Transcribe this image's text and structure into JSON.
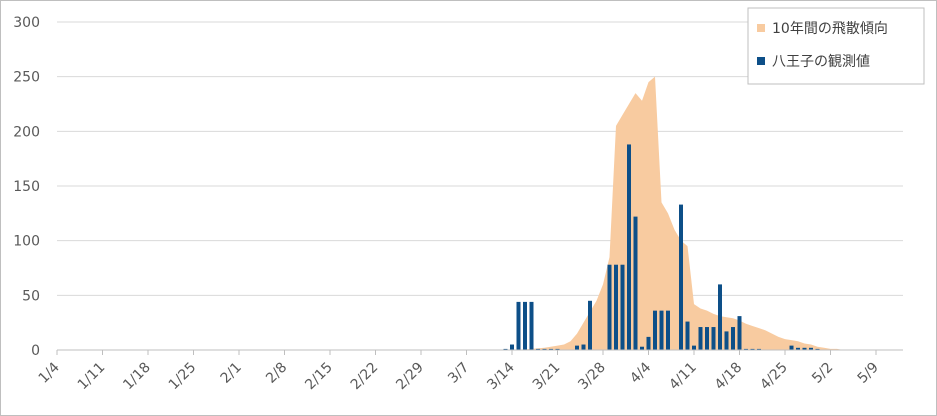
{
  "chart_data": {
    "type": "bar",
    "title": "",
    "xlabel": "",
    "ylabel": "",
    "ylim": [
      0,
      300
    ],
    "yticks": [
      0,
      50,
      100,
      150,
      200,
      250,
      300
    ],
    "grid": true,
    "legend_position": "top-right",
    "start_date": "1/4",
    "x_tick_labels": [
      "1/4",
      "1/11",
      "1/18",
      "1/25",
      "2/1",
      "2/8",
      "2/15",
      "2/22",
      "2/29",
      "3/7",
      "3/14",
      "3/21",
      "3/28",
      "4/4",
      "4/11",
      "4/18",
      "4/25",
      "5/2",
      "5/9"
    ],
    "series": [
      {
        "name": "10年間の飛散傾向",
        "type": "area",
        "color": "#f8cba0",
        "points": [
          [
            "3/14",
            0
          ],
          [
            "3/17",
            1
          ],
          [
            "3/19",
            2
          ],
          [
            "3/21",
            4
          ],
          [
            "3/22",
            5
          ],
          [
            "3/23",
            8
          ],
          [
            "3/24",
            15
          ],
          [
            "3/25",
            25
          ],
          [
            "3/26",
            35
          ],
          [
            "3/27",
            45
          ],
          [
            "3/28",
            60
          ],
          [
            "3/29",
            85
          ],
          [
            "3/30",
            205
          ],
          [
            "3/31",
            215
          ],
          [
            "4/1",
            225
          ],
          [
            "4/2",
            235
          ],
          [
            "4/3",
            228
          ],
          [
            "4/4",
            245
          ],
          [
            "4/5",
            250
          ],
          [
            "4/6",
            135
          ],
          [
            "4/7",
            125
          ],
          [
            "4/8",
            110
          ],
          [
            "4/9",
            100
          ],
          [
            "4/10",
            95
          ],
          [
            "4/11",
            42
          ],
          [
            "4/12",
            38
          ],
          [
            "4/13",
            36
          ],
          [
            "4/14",
            33
          ],
          [
            "4/15",
            31
          ],
          [
            "4/16",
            30
          ],
          [
            "4/17",
            29
          ],
          [
            "4/18",
            27
          ],
          [
            "4/19",
            24
          ],
          [
            "4/20",
            22
          ],
          [
            "4/21",
            20
          ],
          [
            "4/22",
            18
          ],
          [
            "4/23",
            15
          ],
          [
            "4/24",
            12
          ],
          [
            "4/25",
            10
          ],
          [
            "4/26",
            9
          ],
          [
            "4/27",
            8
          ],
          [
            "4/28",
            6
          ],
          [
            "4/29",
            5
          ],
          [
            "4/30",
            3
          ],
          [
            "5/1",
            2
          ],
          [
            "5/2",
            1
          ],
          [
            "5/3",
            1
          ],
          [
            "5/4",
            0
          ]
        ]
      },
      {
        "name": "八王子の観測値",
        "type": "bar",
        "color": "#0d4f88",
        "points": [
          [
            "3/13",
            1
          ],
          [
            "3/14",
            5
          ],
          [
            "3/15",
            44
          ],
          [
            "3/16",
            44
          ],
          [
            "3/17",
            44
          ],
          [
            "3/18",
            1
          ],
          [
            "3/19",
            1
          ],
          [
            "3/20",
            1
          ],
          [
            "3/21",
            1
          ],
          [
            "3/22",
            0
          ],
          [
            "3/23",
            0
          ],
          [
            "3/24",
            4
          ],
          [
            "3/25",
            5
          ],
          [
            "3/26",
            45
          ],
          [
            "3/27",
            0
          ],
          [
            "3/28",
            0
          ],
          [
            "3/29",
            78
          ],
          [
            "3/30",
            78
          ],
          [
            "3/31",
            78
          ],
          [
            "4/1",
            188
          ],
          [
            "4/2",
            122
          ],
          [
            "4/3",
            3
          ],
          [
            "4/4",
            12
          ],
          [
            "4/5",
            36
          ],
          [
            "4/6",
            36
          ],
          [
            "4/7",
            36
          ],
          [
            "4/8",
            0
          ],
          [
            "4/9",
            133
          ],
          [
            "4/10",
            26
          ],
          [
            "4/11",
            4
          ],
          [
            "4/12",
            21
          ],
          [
            "4/13",
            21
          ],
          [
            "4/14",
            21
          ],
          [
            "4/15",
            60
          ],
          [
            "4/16",
            17
          ],
          [
            "4/17",
            21
          ],
          [
            "4/18",
            31
          ],
          [
            "4/19",
            1
          ],
          [
            "4/20",
            1
          ],
          [
            "4/21",
            1
          ],
          [
            "4/22",
            0
          ],
          [
            "4/23",
            0
          ],
          [
            "4/24",
            0
          ],
          [
            "4/25",
            0
          ],
          [
            "4/26",
            4
          ],
          [
            "4/27",
            2
          ],
          [
            "4/28",
            2
          ],
          [
            "4/29",
            2
          ],
          [
            "4/30",
            1
          ]
        ]
      }
    ]
  }
}
